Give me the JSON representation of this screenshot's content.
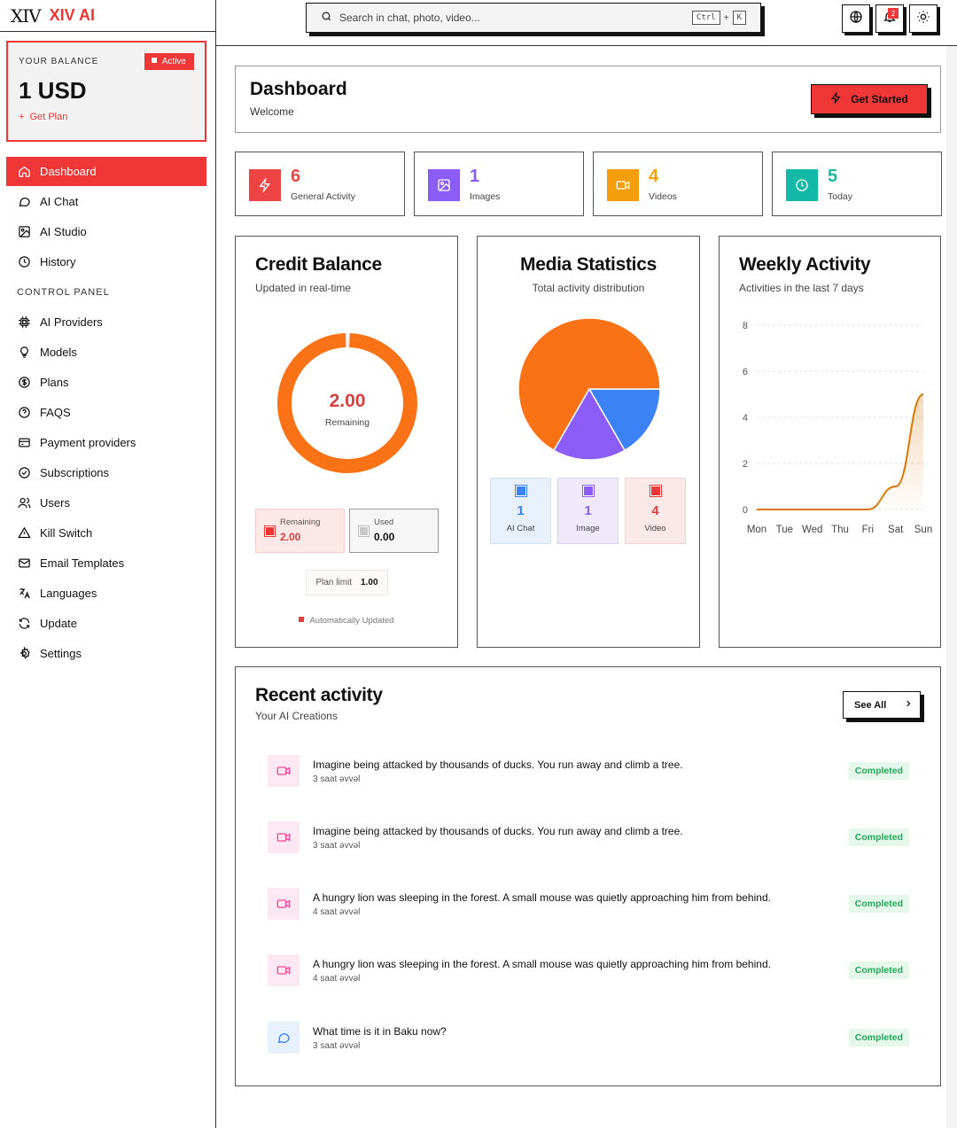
{
  "brand": {
    "logo": "XIV",
    "name": "XIV AI"
  },
  "balance": {
    "label": "YOUR BALANCE",
    "badge": "Active",
    "amount": "1 USD",
    "link": "Get Plan"
  },
  "nav": {
    "items": [
      {
        "label": "Dashboard",
        "icon": "home-icon"
      },
      {
        "label": "AI Chat",
        "icon": "chat-icon"
      },
      {
        "label": "AI Studio",
        "icon": "image-icon"
      },
      {
        "label": "History",
        "icon": "clock-icon"
      }
    ],
    "section": "CONTROL PANEL",
    "control": [
      {
        "label": "AI Providers",
        "icon": "chip-icon"
      },
      {
        "label": "Models",
        "icon": "bulb-icon"
      },
      {
        "label": "Plans",
        "icon": "dollar-icon"
      },
      {
        "label": "FAQS",
        "icon": "help-icon"
      },
      {
        "label": "Payment providers",
        "icon": "card-icon"
      },
      {
        "label": "Subscriptions",
        "icon": "check-circle-icon"
      },
      {
        "label": "Users",
        "icon": "users-icon"
      },
      {
        "label": "Kill Switch",
        "icon": "warning-icon"
      },
      {
        "label": "Email Templates",
        "icon": "mail-icon"
      },
      {
        "label": "Languages",
        "icon": "translate-icon"
      },
      {
        "label": "Update",
        "icon": "refresh-icon"
      },
      {
        "label": "Settings",
        "icon": "settings-icon"
      }
    ]
  },
  "search": {
    "placeholder": "Search in chat, photo, video...",
    "key1": "Ctrl",
    "plus": "+",
    "key2": "K"
  },
  "notifications": {
    "count": "2"
  },
  "header": {
    "title": "Dashboard",
    "subtitle": "Welcome",
    "cta": "Get Started"
  },
  "stats": [
    {
      "value": "6",
      "label": "General Activity",
      "color": "#ef4444"
    },
    {
      "value": "1",
      "label": "Images",
      "color": "#8b5cf6"
    },
    {
      "value": "4",
      "label": "Videos",
      "color": "#f59e0b"
    },
    {
      "value": "5",
      "label": "Today",
      "color": "#14b8a6"
    }
  ],
  "credit": {
    "title": "Credit Balance",
    "subtitle": "Updated in real-time",
    "center_value": "2.00",
    "center_label": "Remaining",
    "remaining_label": "Remaining",
    "remaining_value": "2.00",
    "used_label": "Used",
    "used_value": "0.00",
    "limit_label": "Plan limit",
    "limit_value": "1.00",
    "footer": "Automatically Updated",
    "remaining_fraction": 0.99
  },
  "media": {
    "title": "Media Statistics",
    "subtitle": "Total activity distribution",
    "items": [
      {
        "value": "1",
        "label": "AI Chat",
        "color": "#3b82f6"
      },
      {
        "value": "1",
        "label": "Image",
        "color": "#8b5cf6"
      },
      {
        "value": "4",
        "label": "Video",
        "color": "#f97316"
      }
    ]
  },
  "weekly": {
    "title": "Weekly Activity",
    "subtitle": "Activities in the last 7 days"
  },
  "chart_data": {
    "type": "area",
    "categories": [
      "Mon",
      "Tue",
      "Wed",
      "Thu",
      "Fri",
      "Sat",
      "Sun"
    ],
    "values": [
      0,
      0,
      0,
      0,
      0,
      1,
      5
    ],
    "ylim": [
      0,
      8
    ],
    "yticks": [
      "0",
      "2",
      "4",
      "6",
      "8"
    ],
    "grid": true,
    "color": "#d97706"
  },
  "recent": {
    "title": "Recent activity",
    "subtitle": "Your AI Creations",
    "see_all": "See All",
    "rows": [
      {
        "title": "Imagine being attacked by thousands of ducks. You run away and climb a tree.",
        "time": "3 saat əvvəl",
        "status": "Completed",
        "icon": "video-icon"
      },
      {
        "title": "Imagine being attacked by thousands of ducks. You run away and climb a tree.",
        "time": "3 saat əvvəl",
        "status": "Completed",
        "icon": "video-icon"
      },
      {
        "title": "A hungry lion was sleeping in the forest. A small mouse was quietly approaching him from behind.",
        "time": "4 saat əvvəl",
        "status": "Completed",
        "icon": "video-icon"
      },
      {
        "title": "A hungry lion was sleeping in the forest. A small mouse was quietly approaching him from behind.",
        "time": "4 saat əvvəl",
        "status": "Completed",
        "icon": "video-icon"
      },
      {
        "title": "What time is it in Baku now?",
        "time": "3 saat əvvəl",
        "status": "Completed",
        "icon": "chat-icon"
      }
    ]
  }
}
